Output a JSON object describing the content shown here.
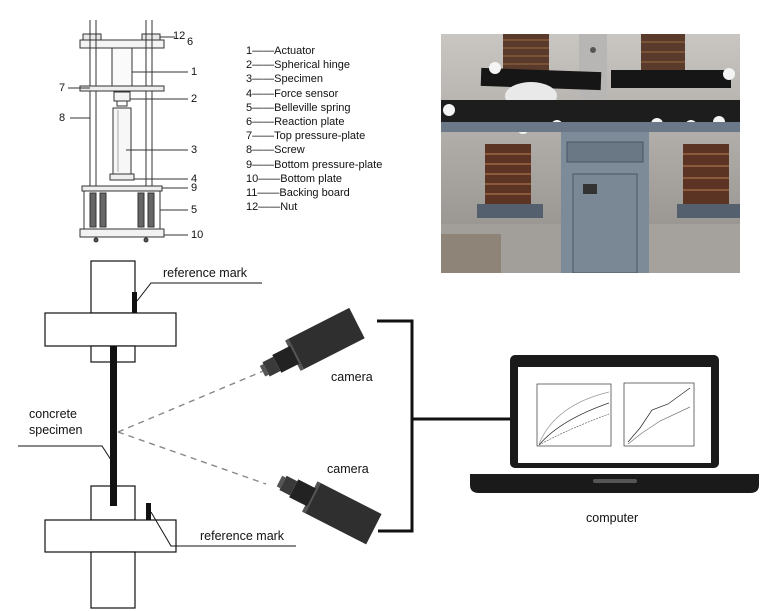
{
  "top_diagram": {
    "numbers": {
      "n12": "12",
      "n6": "6",
      "n1": "1",
      "n7": "7",
      "n2": "2",
      "n8": "8",
      "n3": "3",
      "n4": "4",
      "n9": "9",
      "n5": "5",
      "n10": "10"
    }
  },
  "legend": [
    "1——Actuator",
    "2——Spherical hinge",
    "3——Specimen",
    "4——Force sensor",
    "5——Belleville spring",
    "6——Reaction plate",
    "7——Top pressure-plate",
    "8——Screw",
    "9——Bottom pressure-plate",
    "10——Bottom plate",
    "11——Backing board",
    "12——Nut"
  ],
  "bottom_diagram": {
    "reference_mark_top": "reference mark",
    "reference_mark_bottom": "reference mark",
    "camera_top": "camera",
    "camera_bottom": "camera",
    "specimen_line1": "concrete",
    "specimen_line2": "specimen",
    "computer": "computer"
  }
}
